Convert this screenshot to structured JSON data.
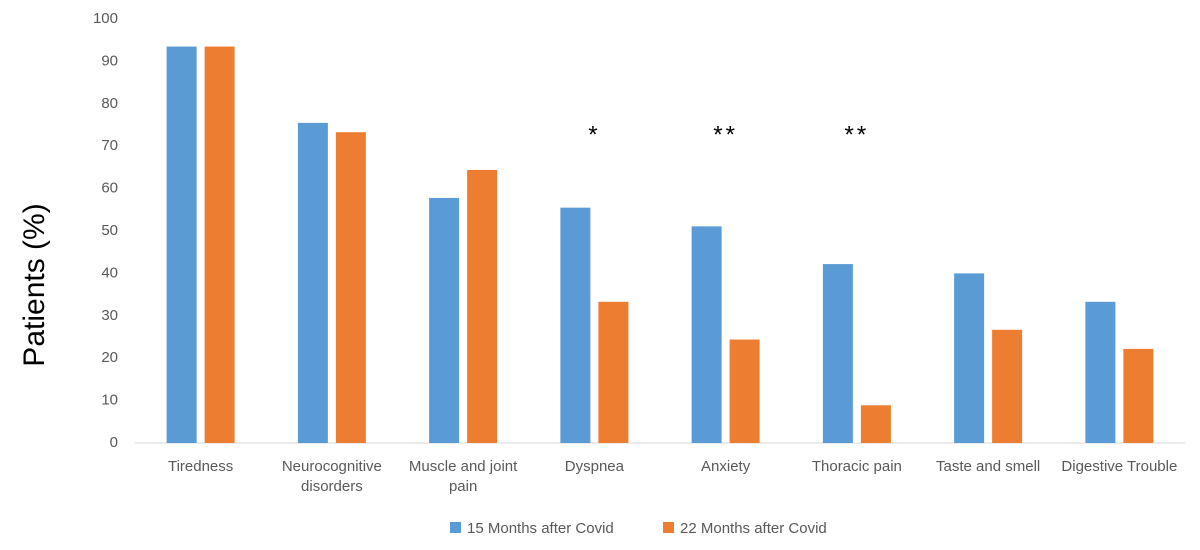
{
  "chart_data": {
    "type": "bar",
    "y_label": "Patients (%)",
    "categories": [
      "Tiredness",
      "Neurocognitive disorders",
      "Muscle and joint pain",
      "Dyspnea",
      "Anxiety",
      "Thoracic pain",
      "Taste and smell",
      "Digestive Trouble"
    ],
    "series": [
      {
        "name": "15 Months after Covid",
        "color": "#5b9bd5",
        "values": [
          93.5,
          75.5,
          57.8,
          55.5,
          51.1,
          42.2,
          40,
          33.3
        ]
      },
      {
        "name": "22 Months after Covid",
        "color": "#ed7d31",
        "values": [
          93.5,
          73.3,
          64.4,
          33.3,
          24.4,
          8.9,
          26.7,
          22.2
        ]
      }
    ],
    "annotations": [
      {
        "text": "*",
        "category": "Dyspnea"
      },
      {
        "text": "**",
        "category": "Anxiety"
      },
      {
        "text": "**",
        "category": "Thoracic pain"
      }
    ],
    "ylim": [
      0,
      100
    ],
    "yticks": [
      0,
      10,
      20,
      30,
      40,
      50,
      60,
      70,
      80,
      90,
      100
    ],
    "grid": false,
    "legend": "bottom"
  }
}
